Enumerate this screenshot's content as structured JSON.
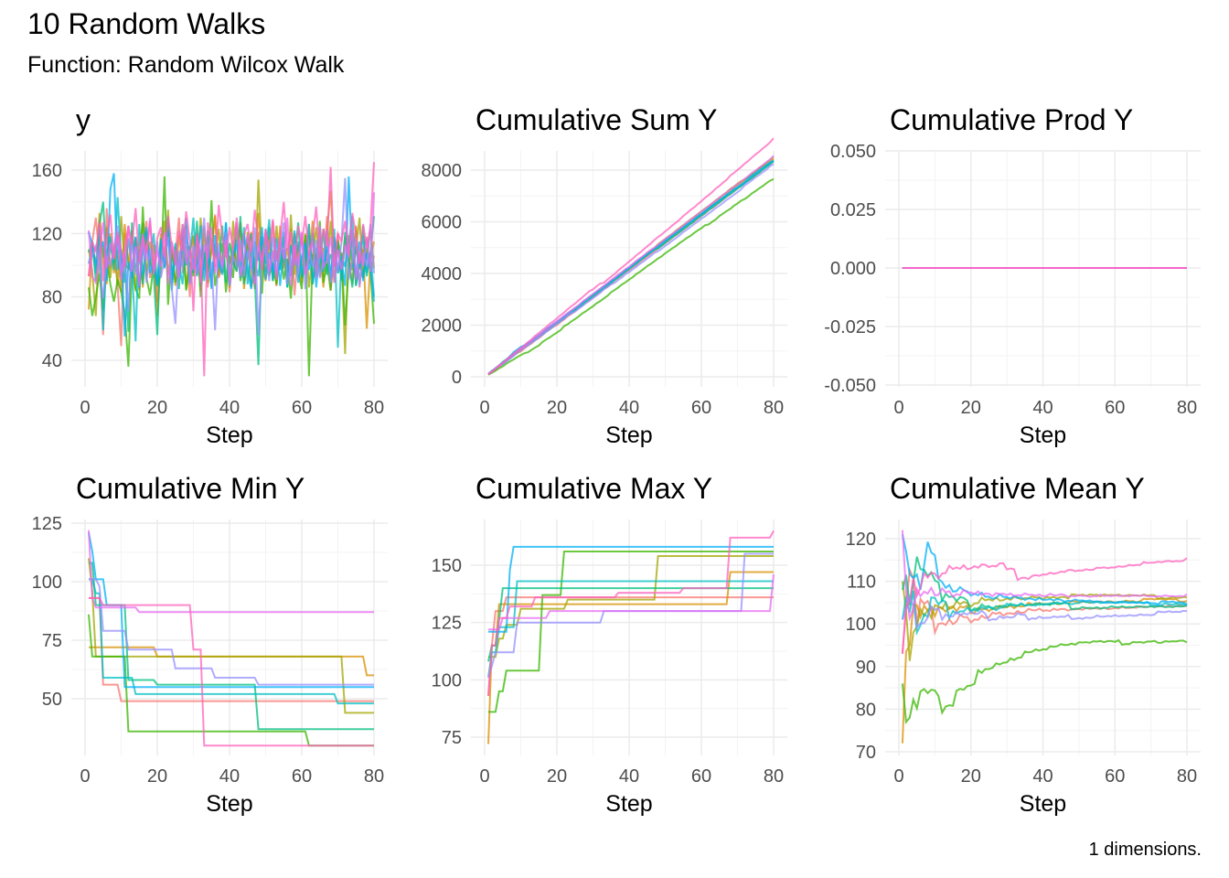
{
  "title": "10 Random Walks",
  "subtitle": "Function: Random Wilcox Walk",
  "caption": "1 dimensions.",
  "chart_data": {
    "type": "line",
    "layout": "faceted 2x3",
    "grid": true,
    "legend": "none",
    "colors": [
      "#F8766D",
      "#D89000",
      "#A3A500",
      "#39B600",
      "#00BF7D",
      "#00BFC4",
      "#00B0F6",
      "#9590FF",
      "#E76BF3",
      "#FF62BC"
    ],
    "x_label": "Step",
    "x_ticks": [
      0,
      20,
      40,
      60,
      80
    ],
    "xlim": [
      1,
      80
    ],
    "panels": [
      {
        "title": "y",
        "transform": "identity",
        "y_ticks": [
          "40",
          "80",
          "120",
          "160"
        ],
        "y_tick_values": [
          40,
          80,
          120,
          160
        ]
      },
      {
        "title": "Cumulative Sum Y",
        "transform": "cumsum",
        "y_ticks": [
          "0",
          "2000",
          "4000",
          "6000",
          "8000"
        ],
        "y_tick_values": [
          0,
          2000,
          4000,
          6000,
          8000
        ]
      },
      {
        "title": "Cumulative Prod Y",
        "transform": "cumprod_shown_as_zero",
        "y_ticks": [
          "-0.050",
          "-0.025",
          "0.000",
          "0.025",
          "0.050"
        ],
        "y_tick_values": [
          -0.05,
          -0.025,
          0,
          0.025,
          0.05
        ]
      },
      {
        "title": "Cumulative Min Y",
        "transform": "cummin",
        "y_ticks": [
          "50",
          "75",
          "100",
          "125"
        ],
        "y_tick_values": [
          50,
          75,
          100,
          125
        ]
      },
      {
        "title": "Cumulative Max Y",
        "transform": "cummax",
        "y_ticks": [
          "75",
          "100",
          "125",
          "150"
        ],
        "y_tick_values": [
          75,
          100,
          125,
          150
        ]
      },
      {
        "title": "Cumulative Mean Y",
        "transform": "cummean",
        "y_ticks": [
          "70",
          "80",
          "90",
          "100",
          "110",
          "120"
        ],
        "y_tick_values": [
          70,
          80,
          90,
          100,
          110,
          120
        ]
      }
    ],
    "series": [
      {
        "values": [
          93,
          115,
          130,
          105,
          56,
          136,
          98,
          110,
          88,
          49,
          120,
          102,
          95,
          118,
          84,
          110,
          128,
          92,
          101,
          77,
          115,
          99,
          124,
          88,
          106,
          130,
          95,
          112,
          80,
          118,
          104,
          97,
          125,
          86,
          110,
          132,
          92,
          101,
          119,
          83,
          108,
          96,
          127,
          90,
          113,
          104,
          85,
          121,
          99,
          110,
          93,
          128,
          87,
          115,
          102,
          96,
          123,
          81,
          109,
          117,
          94,
          126,
          88,
          105,
          112,
          98,
          131,
          84,
          107,
          120,
          91,
          114,
          103,
          97,
          125,
          86,
          110,
          118,
          95,
          106
        ]
      },
      {
        "values": [
          72,
          115,
          98,
          133,
          104,
          88,
          120,
          95,
          110,
          83,
          126,
          101,
          92,
          117,
          108,
          86,
          122,
          99,
          113,
          68,
          105,
          128,
          94,
          111,
          87,
          119,
          102,
          125,
          90,
          107,
          116,
          84,
          123,
          97,
          109,
          131,
          93,
          104,
          118,
          88,
          112,
          99,
          127,
          85,
          106,
          121,
          95,
          133,
          102,
          90,
          114,
          108,
          87,
          125,
          98,
          111,
          93,
          120,
          104,
          89,
          116,
          101,
          128,
          94,
          109,
          86,
          122,
          147,
          99,
          113,
          92,
          118,
          105,
          88,
          124,
          97,
          110,
          60,
          103,
          115
        ]
      },
      {
        "values": [
          110,
          96,
          68,
          118,
          105,
          124,
          92,
          113,
          87,
          131,
          101,
          98,
          122,
          84,
          109,
          127,
          93,
          115,
          100,
          88,
          120,
          106,
          135,
          91,
          112,
          97,
          126,
          85,
          108,
          119,
          94,
          130,
          102,
          89,
          117,
          104,
          123,
          95,
          111,
          86,
          128,
          99,
          114,
          92,
          121,
          107,
          88,
          154,
          103,
          96,
          118,
          90,
          125,
          101,
          109,
          87,
          132,
          94,
          113,
          99,
          120,
          86,
          107,
          124,
          93,
          111,
          100,
          128,
          89,
          116,
          105,
          44,
          119,
          97,
          110,
          130,
          92,
          104,
          122,
          98
        ]
      },
      {
        "values": [
          86,
          68,
          80,
          95,
          72,
          104,
          88,
          77,
          91,
          83,
          70,
          36,
          98,
          85,
          79,
          137,
          92,
          81,
          101,
          88,
          94,
          156,
          75,
          110,
          89,
          97,
          118,
          84,
          102,
          93,
          120,
          80,
          108,
          95,
          141,
          87,
          99,
          114,
          83,
          106,
          92,
          125,
          90,
          101,
          117,
          86,
          97,
          109,
          82,
          123,
          94,
          100,
          88,
          115,
          91,
          104,
          79,
          112,
          96,
          85,
          119,
          30,
          107,
          93,
          128,
          89,
          101,
          84,
          116,
          95,
          108,
          62,
          99,
          122,
          87,
          103,
          92,
          111,
          96,
          63
        ]
      },
      {
        "values": [
          108,
          115,
          90,
          126,
          140,
          98,
          112,
          101,
          119,
          93,
          105,
          58,
          127,
          96,
          110,
          88,
          121,
          103,
          94,
          56,
          117,
          99,
          130,
          91,
          108,
          85,
          123,
          100,
          112,
          95,
          128,
          87,
          106,
          118,
          92,
          110,
          99,
          125,
          89,
          114,
          102,
          96,
          131,
          88,
          107,
          120,
          93,
          37,
          115,
          101,
          124,
          90,
          109,
          97,
          118,
          86,
          113,
          104,
          127,
          92,
          100,
          119,
          88,
          111,
          96,
          123,
          94,
          107,
          99,
          115,
          90,
          121,
          103,
          86,
          112,
          98,
          125,
          93,
          108,
          131
        ]
      },
      {
        "values": [
          101,
          112,
          95,
          123,
          59,
          108,
          118,
          97,
          143,
          105,
          89,
          117,
          100,
          52,
          126,
          94,
          111,
          103,
          120,
          87,
          109,
          98,
          125,
          92,
          114,
          101,
          88,
          119,
          106,
          130,
          93,
          110,
          97,
          122,
          85,
          113,
          104,
          96,
          127,
          90,
          108,
          116,
          99,
          124,
          88,
          111,
          102,
          93,
          118,
          107,
          129,
          91,
          105,
          97,
          121,
          86,
          112,
          100,
          115,
          94,
          108,
          126,
          89,
          103,
          117,
          96,
          110,
          92,
          123,
          48,
          106,
          99,
          114,
          131,
          87,
          101,
          119,
          95,
          108,
          80
        ]
      },
      {
        "values": [
          121,
          113,
          101,
          108,
          115,
          90,
          148,
          158,
          97,
          110,
          55,
          102,
          92,
          118,
          86,
          109,
          124,
          95,
          103,
          88,
          116,
          99,
          121,
          84,
          107,
          93,
          112,
          130,
          89,
          104,
          97,
          125,
          90,
          111,
          86,
          119,
          101,
          94,
          127,
          88,
          106,
          113,
          92,
          120,
          98,
          85,
          115,
          103,
          124,
          91,
          108,
          96,
          117,
          87,
          110,
          100,
          93,
          122,
          89,
          105,
          114,
          97,
          120,
          86,
          109,
          99,
          112,
          92,
          118,
          95,
          103,
          87,
          156,
          101,
          94,
          115,
          90,
          108,
          98,
          77
        ]
      },
      {
        "values": [
          101,
          106,
          112,
          98,
          79,
          105,
          100,
          111,
          125,
          96,
          108,
          71,
          117,
          94,
          103,
          120,
          89,
          110,
          97,
          115,
          92,
          104,
          118,
          86,
          63,
          109,
          99,
          123,
          88,
          112,
          95,
          107,
          130,
          91,
          102,
          59,
          114,
          97,
          121,
          87,
          106,
          100,
          116,
          93,
          109,
          98,
          124,
          56,
          103,
          111,
          90,
          118,
          96,
          107,
          127,
          88,
          101,
          113,
          94,
          120,
          85,
          109,
          99,
          116,
          92,
          104,
          122,
          89,
          107,
          96,
          114,
          155,
          91,
          103,
          118,
          87,
          108,
          99,
          126,
          95
        ]
      },
      {
        "values": [
          122,
          93,
          89,
          110,
          127,
          98,
          114,
          104,
          119,
          91,
          108,
          125,
          96,
          112,
          87,
          117,
          103,
          130,
          94,
          109,
          99,
          121,
          88,
          115,
          106,
          92,
          126,
          101,
          110,
          97,
          118,
          89,
          113,
          104,
          124,
          95,
          108,
          99,
          116,
          90,
          111,
          127,
          93,
          105,
          119,
          98,
          88,
          114,
          102,
          123,
          96,
          109,
          91,
          117,
          104,
          130,
          87,
          112,
          100,
          121,
          94,
          107,
          115,
          92,
          125,
          99,
          103,
          118,
          89,
          110,
          97,
          113,
          105,
          123,
          91,
          108,
          100,
          117,
          96,
          146
        ]
      },
      {
        "values": [
          93,
          115,
          108,
          127,
          90,
          118,
          132,
          104,
          121,
          110,
          99,
          125,
          113,
          136,
          102,
          119,
          108,
          128,
          96,
          117,
          124,
          105,
          131,
          112,
          100,
          122,
          109,
          134,
          115,
          71,
          120,
          106,
          30,
          127,
          113,
          99,
          138,
          118,
          105,
          124,
          111,
          130,
          102,
          119,
          126,
          108,
          135,
          114,
          97,
          122,
          110,
          129,
          103,
          117,
          140,
          109,
          121,
          100,
          125,
          113,
          131,
          106,
          118,
          137,
          104,
          123,
          112,
          162,
          99,
          120,
          115,
          128,
          107,
          133,
          119,
          101,
          126,
          111,
          124,
          165
        ]
      }
    ]
  }
}
